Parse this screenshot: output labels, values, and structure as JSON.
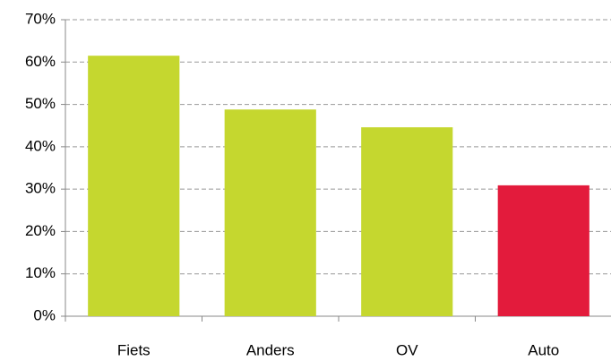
{
  "chart_data": {
    "type": "bar",
    "categories": [
      "Fiets",
      "Anders",
      "OV",
      "Auto"
    ],
    "values": [
      61.5,
      48.8,
      44.6,
      30.9
    ],
    "colors": [
      "#c5d72f",
      "#c5d72f",
      "#c5d72f",
      "#e31b3c"
    ],
    "ylim": [
      0,
      70
    ],
    "yticks": [
      {
        "value": 0,
        "label": "0%"
      },
      {
        "value": 10,
        "label": "10%"
      },
      {
        "value": 20,
        "label": "20%"
      },
      {
        "value": 30,
        "label": "30%"
      },
      {
        "value": 40,
        "label": "40%"
      },
      {
        "value": 50,
        "label": "50%"
      },
      {
        "value": 60,
        "label": "60%"
      },
      {
        "value": 70,
        "label": "70%"
      }
    ],
    "grid": true
  }
}
